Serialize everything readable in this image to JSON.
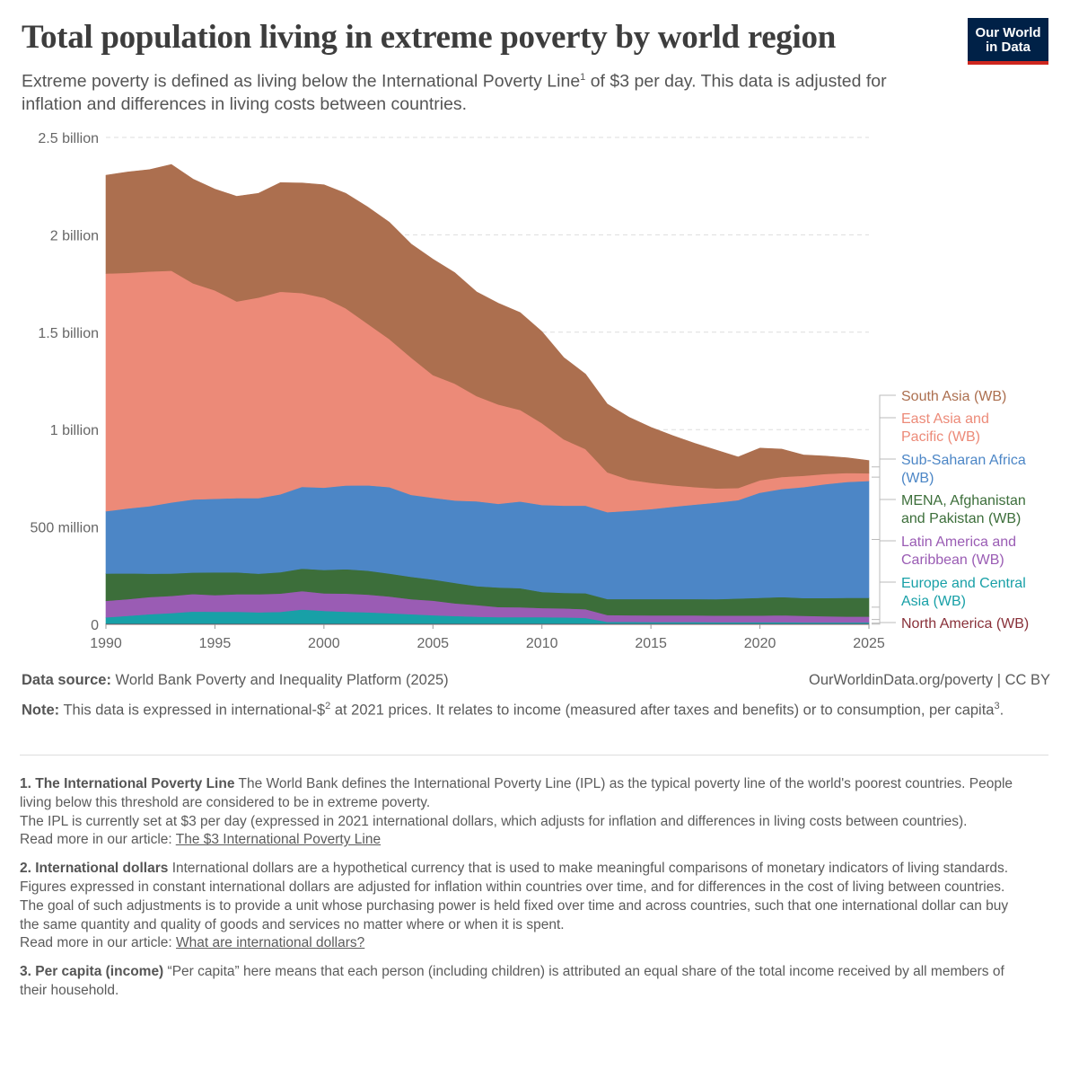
{
  "header": {
    "title": "Total population living in extreme poverty by world region",
    "subtitle_part1": "Extreme poverty is defined as living below the  International Poverty Line",
    "subtitle_sup": "1",
    "subtitle_part2": " of $3 per day. This data is adjusted for inflation and differences in living costs between countries."
  },
  "logo": {
    "line1": "Our World",
    "line2": "in Data"
  },
  "chart_data": {
    "type": "area",
    "stacked": true,
    "title": "Total population living in extreme poverty by world region",
    "xlabel": "",
    "ylabel": "",
    "xlim": [
      1990,
      2025
    ],
    "ylim": [
      0,
      2500000000
    ],
    "x_ticks": [
      1990,
      1995,
      2000,
      2005,
      2010,
      2015,
      2020,
      2025
    ],
    "y_ticks": [
      {
        "value": 0,
        "label": "0"
      },
      {
        "value": 500000000,
        "label": "500 million"
      },
      {
        "value": 1000000000,
        "label": "1 billion"
      },
      {
        "value": 1500000000,
        "label": "1.5 billion"
      },
      {
        "value": 2000000000,
        "label": "2 billion"
      },
      {
        "value": 2500000000,
        "label": "2.5 billion"
      }
    ],
    "grid": "horizontal dashed",
    "legend_position": "right",
    "x": [
      1990,
      1991,
      1992,
      1993,
      1994,
      1995,
      1996,
      1997,
      1998,
      1999,
      2000,
      2001,
      2002,
      2003,
      2004,
      2005,
      2006,
      2007,
      2008,
      2009,
      2010,
      2011,
      2012,
      2013,
      2014,
      2015,
      2016,
      2017,
      2018,
      2019,
      2020,
      2021,
      2022,
      2023,
      2024,
      2025
    ],
    "series": [
      {
        "name": "North America (WB)",
        "color": "#883039",
        "values": [
          3,
          3,
          3,
          3,
          3,
          3,
          3,
          3,
          3,
          3,
          3,
          3,
          3,
          3,
          3,
          3,
          3,
          3,
          3,
          3,
          3,
          3,
          3,
          3,
          3,
          3,
          3,
          3,
          3,
          3,
          3,
          3,
          3,
          3,
          3,
          3
        ]
      },
      {
        "name": "Europe and Central Asia (WB)",
        "color": "#18a0a7",
        "values": [
          33,
          41,
          49,
          55,
          63,
          62,
          62,
          59,
          61,
          73,
          66,
          62,
          59,
          54,
          49,
          44,
          40,
          36,
          34,
          34,
          34,
          33,
          30,
          10,
          10,
          9,
          9,
          9,
          8,
          8,
          8,
          8,
          7,
          7,
          7,
          7
        ]
      },
      {
        "name": "Latin America and Caribbean (WB)",
        "color": "#9a5cb4",
        "values": [
          85,
          85,
          88,
          88,
          90,
          85,
          90,
          93,
          94,
          95,
          90,
          93,
          91,
          86,
          77,
          75,
          65,
          60,
          52,
          51,
          47,
          46,
          45,
          35,
          34,
          34,
          34,
          34,
          34,
          34,
          34,
          36,
          34,
          32,
          30,
          30
        ]
      },
      {
        "name": "MENA, Afghanistan and Pakistan (WB)",
        "color": "#3c6e3a",
        "values": [
          140,
          133,
          120,
          115,
          110,
          117,
          112,
          105,
          110,
          115,
          120,
          125,
          123,
          118,
          115,
          108,
          105,
          97,
          100,
          98,
          82,
          80,
          82,
          82,
          83,
          84,
          84,
          84,
          84,
          88,
          91,
          93,
          91,
          93,
          96,
          96
        ]
      },
      {
        "name": "Sub-Saharan Africa (WB)",
        "color": "#4c86c6",
        "values": [
          320,
          333,
          347,
          365,
          375,
          378,
          381,
          388,
          400,
          420,
          423,
          430,
          438,
          444,
          421,
          420,
          423,
          436,
          430,
          445,
          447,
          448,
          450,
          446,
          453,
          462,
          474,
          485,
          496,
          505,
          540,
          555,
          570,
          585,
          595,
          600
        ]
      },
      {
        "name": "East Asia and Pacific (WB)",
        "color": "#ec8a78",
        "values": [
          1220,
          1210,
          1205,
          1190,
          1110,
          1070,
          1010,
          1030,
          1040,
          995,
          975,
          910,
          830,
          760,
          705,
          630,
          600,
          540,
          510,
          470,
          420,
          340,
          290,
          205,
          160,
          135,
          110,
          90,
          73,
          62,
          64,
          62,
          58,
          52,
          46,
          40
        ]
      },
      {
        "name": "South Asia (WB)",
        "color": "#ac6f4f",
        "values": [
          505,
          518,
          523,
          545,
          535,
          520,
          540,
          535,
          560,
          565,
          580,
          590,
          600,
          600,
          583,
          595,
          570,
          535,
          520,
          500,
          470,
          420,
          385,
          350,
          320,
          285,
          255,
          225,
          197,
          160,
          165,
          143,
          107,
          92,
          78,
          65
        ]
      }
    ],
    "units": "million people"
  },
  "source": {
    "label": "Data source:",
    "text": " World Bank Poverty and Inequality Platform (2025)",
    "credit": "OurWorldinData.org/poverty  | CC BY"
  },
  "note": {
    "label": "Note:",
    "text1": " This data is expressed in international-$",
    "sup1": "2",
    "text2": " at 2021 prices. It relates to income (measured after taxes and benefits) or to consumption,  per capita",
    "sup2": "3",
    "text3": "."
  },
  "footnotes": [
    {
      "label": "1. The International Poverty Line",
      "paragraphs": [
        "The World Bank defines the International Poverty Line (IPL) as the typical poverty line of the world's poorest countries. People living below this threshold are considered to be in extreme poverty.",
        "The IPL is currently set at $3 per day (expressed in 2021  international dollars, which adjusts for inflation and differences in living costs between countries)."
      ],
      "read_more": "Read more in our article: ",
      "link": "The $3 International Poverty Line"
    },
    {
      "label": "2. International dollars",
      "paragraphs": [
        "International dollars are a hypothetical currency that is used to make meaningful comparisons of monetary indicators of living standards.",
        "Figures expressed in constant international dollars are adjusted for inflation within countries over time, and for differences in the cost of living between countries.",
        "The goal of such adjustments is to provide a unit whose purchasing power is held fixed over time and across countries, such that one international dollar can buy the same quantity and quality of goods and services no matter where or when it is spent."
      ],
      "read_more": "Read more in our article: ",
      "link": "What are international dollars?"
    },
    {
      "label": "3. Per capita (income)",
      "paragraphs": [
        "“Per capita” here means that each person (including children) is attributed an equal share of the total income received by all members of their household."
      ]
    }
  ]
}
